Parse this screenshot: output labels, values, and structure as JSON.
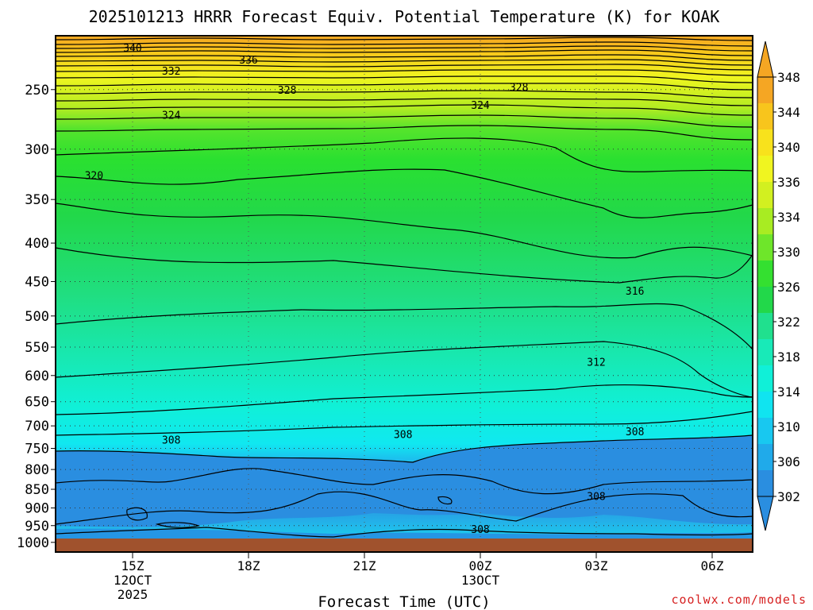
{
  "chart_data": {
    "type": "contour",
    "title": "2025101213 HRRR Forecast Equiv. Potential Temperature (K) for KOAK",
    "xlabel": "Forecast Time (UTC)",
    "ylabel": "",
    "x_ticks": [
      {
        "label": "15Z",
        "sub": [
          "12OCT",
          "2025"
        ]
      },
      {
        "label": "18Z",
        "sub": []
      },
      {
        "label": "21Z",
        "sub": []
      },
      {
        "label": "00Z",
        "sub": [
          "13OCT"
        ]
      },
      {
        "label": "03Z",
        "sub": []
      },
      {
        "label": "06Z",
        "sub": []
      }
    ],
    "y_ticks": [
      250,
      300,
      350,
      400,
      450,
      500,
      550,
      600,
      650,
      700,
      750,
      800,
      850,
      900,
      950,
      1000
    ],
    "y_scale": "log (pressure, hPa)",
    "colorbar": {
      "labels": [
        348,
        344,
        340,
        336,
        334,
        330,
        326,
        322,
        318,
        314,
        310,
        306,
        302
      ],
      "colors": [
        "#f5a623",
        "#f8c51c",
        "#f8e21c",
        "#f0f520",
        "#d2f020",
        "#a8ec22",
        "#6ee62a",
        "#34e030",
        "#22d84a",
        "#20e08e",
        "#18eab8",
        "#10f0d8",
        "#10e4f0",
        "#18c8f0",
        "#20aaea",
        "#2a8ee0"
      ]
    },
    "contour_labels": [
      {
        "value": "340",
        "time": "15Z",
        "p": 220
      },
      {
        "value": "336",
        "time": "18Z",
        "p": 228
      },
      {
        "value": "332",
        "time": "16Z",
        "p": 236
      },
      {
        "value": "328",
        "time": "19Z",
        "p": 250
      },
      {
        "value": "328",
        "time": "01Z",
        "p": 248
      },
      {
        "value": "324",
        "time": "16Z",
        "p": 270
      },
      {
        "value": "324",
        "time": "00Z",
        "p": 262
      },
      {
        "value": "320",
        "time": "14Z",
        "p": 325
      },
      {
        "value": "316",
        "time": "04Z",
        "p": 463
      },
      {
        "value": "312",
        "time": "03Z",
        "p": 575
      },
      {
        "value": "308",
        "time": "16Z",
        "p": 730
      },
      {
        "value": "308",
        "time": "22Z",
        "p": 718
      },
      {
        "value": "308",
        "time": "04Z",
        "p": 712
      },
      {
        "value": "308",
        "time": "03Z",
        "p": 868
      },
      {
        "value": "308",
        "time": "00Z",
        "p": 960
      }
    ],
    "surface_color": "#a0522d",
    "grid": true
  },
  "watermark": "coolwx.com/models"
}
